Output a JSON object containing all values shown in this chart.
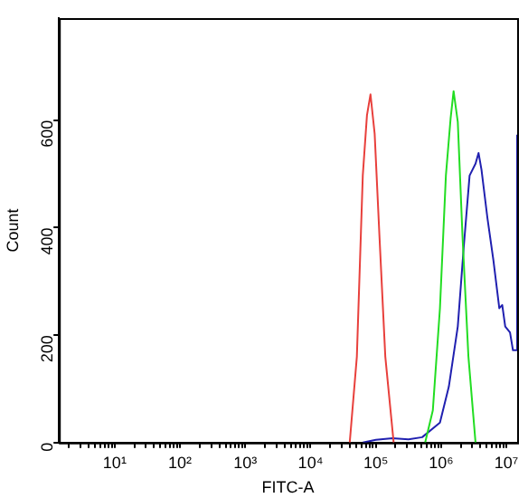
{
  "chart_data": {
    "type": "line",
    "xlabel": "FITC-A",
    "ylabel": "Count",
    "log": "x",
    "grid": false,
    "legend": false,
    "marker": "none",
    "line_style": "solid",
    "xlim": [
      1.4,
      14600000
    ],
    "ylim": [
      0,
      790
    ],
    "yticks": [
      0,
      200,
      400,
      600
    ],
    "xticks": [
      {
        "value": 2,
        "label": null
      },
      {
        "value": 3,
        "label": null
      },
      {
        "value": 4,
        "label": null
      },
      {
        "value": 5,
        "label": null
      },
      {
        "value": 6,
        "label": null
      },
      {
        "value": 7,
        "label": null
      },
      {
        "value": 8,
        "label": null
      },
      {
        "value": 9,
        "label": null
      },
      {
        "value": 10,
        "label": "10¹"
      },
      {
        "value": 20,
        "label": null
      },
      {
        "value": 30,
        "label": null
      },
      {
        "value": 40,
        "label": null
      },
      {
        "value": 50,
        "label": null
      },
      {
        "value": 60,
        "label": null
      },
      {
        "value": 70,
        "label": null
      },
      {
        "value": 80,
        "label": null
      },
      {
        "value": 90,
        "label": null
      },
      {
        "value": 100,
        "label": "10²"
      },
      {
        "value": 200,
        "label": null
      },
      {
        "value": 300,
        "label": null
      },
      {
        "value": 400,
        "label": null
      },
      {
        "value": 500,
        "label": null
      },
      {
        "value": 600,
        "label": null
      },
      {
        "value": 700,
        "label": null
      },
      {
        "value": 800,
        "label": null
      },
      {
        "value": 900,
        "label": null
      },
      {
        "value": 1000,
        "label": "10³"
      },
      {
        "value": 2000,
        "label": null
      },
      {
        "value": 3000,
        "label": null
      },
      {
        "value": 4000,
        "label": null
      },
      {
        "value": 5000,
        "label": null
      },
      {
        "value": 6000,
        "label": null
      },
      {
        "value": 7000,
        "label": null
      },
      {
        "value": 8000,
        "label": null
      },
      {
        "value": 9000,
        "label": null
      },
      {
        "value": 10000,
        "label": "10⁴"
      },
      {
        "value": 20000,
        "label": null
      },
      {
        "value": 30000,
        "label": null
      },
      {
        "value": 40000,
        "label": null
      },
      {
        "value": 50000,
        "label": null
      },
      {
        "value": 60000,
        "label": null
      },
      {
        "value": 70000,
        "label": null
      },
      {
        "value": 80000,
        "label": null
      },
      {
        "value": 90000,
        "label": null
      },
      {
        "value": 100000,
        "label": "10⁵"
      },
      {
        "value": 200000,
        "label": null
      },
      {
        "value": 300000,
        "label": null
      },
      {
        "value": 400000,
        "label": null
      },
      {
        "value": 500000,
        "label": null
      },
      {
        "value": 600000,
        "label": null
      },
      {
        "value": 700000,
        "label": null
      },
      {
        "value": 800000,
        "label": null
      },
      {
        "value": 900000,
        "label": null
      },
      {
        "value": 1000000,
        "label": "10⁶"
      },
      {
        "value": 2000000,
        "label": null
      },
      {
        "value": 3000000,
        "label": null
      },
      {
        "value": 4000000,
        "label": null
      },
      {
        "value": 5000000,
        "label": null
      },
      {
        "value": 6000000,
        "label": null
      },
      {
        "value": 7000000,
        "label": null
      },
      {
        "value": 8000000,
        "label": null
      },
      {
        "value": 9000000,
        "label": null
      },
      {
        "value": 10000000,
        "label": "10⁷"
      }
    ],
    "series": [
      {
        "color": "#e8403c",
        "x": [
          39800,
          51200,
          63100,
          73100,
          82800,
          95900,
          113500,
          139600,
          187500
        ],
        "values": [
          0,
          160,
          497,
          609,
          648,
          575,
          385,
          160,
          0
        ]
      },
      {
        "color": "#22dd22",
        "x": [
          569000,
          746000,
          959000,
          1183000,
          1396000,
          1552000,
          1799000,
          2123000,
          2618000,
          3365000
        ],
        "values": [
          0,
          60,
          250,
          497,
          603,
          654,
          597,
          385,
          160,
          0
        ]
      },
      {
        "color": "#2020b0",
        "x": [
          63100,
          100000,
          180000,
          316000,
          512000,
          959000,
          1312000,
          1799000,
          2213000,
          2729000,
          3365000,
          3741000,
          4150000,
          5117000,
          6310000,
          7780000,
          8630000,
          9590000,
          11350000,
          12590000,
          14600000,
          14600000
        ],
        "values": [
          0,
          5,
          8,
          6,
          10,
          37,
          104,
          216,
          362,
          497,
          519,
          539,
          508,
          418,
          340,
          250,
          256,
          216,
          205,
          172,
          172,
          573
        ]
      }
    ]
  }
}
